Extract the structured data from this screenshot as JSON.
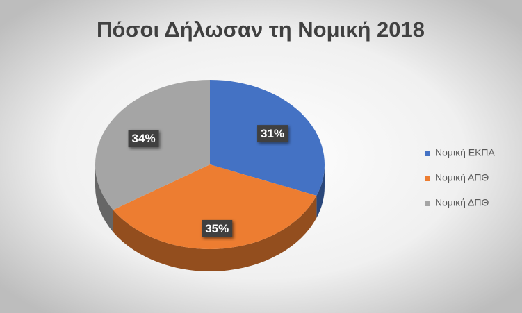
{
  "chart_data": {
    "type": "pie",
    "title": "Πόσοι Δήλωσαν τη Νομική 2018",
    "categories": [
      "Νομική ΕΚΠΑ",
      "Νομική ΑΠΘ",
      "Νομική ΔΠΘ"
    ],
    "values": [
      31,
      35,
      34
    ],
    "value_labels": [
      "31%",
      "35%",
      "34%"
    ],
    "colors": [
      "#4472c4",
      "#ed7d31",
      "#a5a5a5"
    ],
    "legend": "right"
  }
}
